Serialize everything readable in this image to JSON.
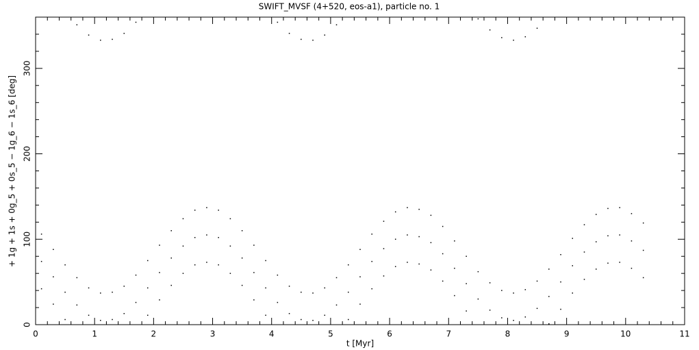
{
  "chart_data": {
    "type": "scatter",
    "title": "SWIFT_MVSF (4+520, eos-a1), particle no. 1",
    "x_label": "t [Myr]",
    "y_label": "+ 1g + 1s + 0g_5 + 0s_5 − 1g_6 − 1s_6 [deg]",
    "xlim": [
      0,
      11
    ],
    "ylim": [
      0,
      360
    ],
    "xticks": [
      0,
      1,
      2,
      3,
      4,
      5,
      6,
      7,
      8,
      9,
      10,
      11
    ],
    "yticks": [
      0,
      100,
      200,
      300
    ],
    "color": "#000000",
    "x": [
      0.1,
      0.1,
      0.1,
      0.3,
      0.3,
      0.3,
      0.5,
      0.5,
      0.5,
      0.7,
      0.7,
      0.7,
      0.9,
      0.9,
      0.9,
      1.1,
      1.1,
      1.1,
      1.3,
      1.3,
      1.3,
      1.5,
      1.5,
      1.5,
      1.7,
      1.7,
      1.7,
      1.9,
      1.9,
      1.9,
      2.1,
      2.1,
      2.1,
      2.3,
      2.3,
      2.3,
      2.5,
      2.5,
      2.5,
      2.7,
      2.7,
      2.7,
      2.9,
      2.9,
      2.9,
      3.1,
      3.1,
      3.1,
      3.3,
      3.3,
      3.3,
      3.5,
      3.5,
      3.5,
      3.7,
      3.7,
      3.7,
      3.9,
      3.9,
      3.9,
      4.1,
      4.1,
      4.1,
      4.3,
      4.3,
      4.3,
      4.5,
      4.5,
      4.5,
      4.7,
      4.7,
      4.7,
      4.9,
      4.9,
      4.9,
      5.1,
      5.1,
      5.1,
      5.3,
      5.3,
      5.3,
      5.5,
      5.5,
      5.5,
      5.7,
      5.7,
      5.7,
      5.9,
      5.9,
      5.9,
      6.1,
      6.1,
      6.1,
      6.3,
      6.3,
      6.3,
      6.5,
      6.5,
      6.5,
      6.7,
      6.7,
      6.7,
      6.9,
      6.9,
      6.9,
      7.1,
      7.1,
      7.1,
      7.3,
      7.3,
      7.3,
      7.5,
      7.5,
      7.5,
      7.7,
      7.7,
      7.7,
      7.9,
      7.9,
      7.9,
      8.1,
      8.1,
      8.1,
      8.3,
      8.3,
      8.3,
      8.5,
      8.5,
      8.5,
      8.7,
      8.7,
      8.7,
      8.9,
      8.9,
      8.9,
      9.1,
      9.1,
      9.1,
      9.3,
      9.3,
      9.3,
      9.5,
      9.5,
      9.5,
      9.7,
      9.7,
      9.7,
      9.9,
      9.9,
      9.9,
      10.1,
      10.1,
      10.1,
      10.3,
      10.3,
      10.3
    ],
    "y": [
      106,
      74,
      42,
      88,
      56,
      24,
      70,
      38,
      6,
      55,
      23,
      351,
      43,
      11,
      339,
      37,
      5,
      333,
      38,
      6,
      334,
      45,
      13,
      341,
      58,
      26,
      354,
      75,
      43,
      11,
      93,
      61,
      29,
      110,
      78,
      46,
      124,
      92,
      60,
      134,
      102,
      70,
      137,
      105,
      73,
      134,
      102,
      70,
      124,
      92,
      60,
      110,
      78,
      46,
      93,
      61,
      29,
      75,
      43,
      11,
      58,
      26,
      354,
      45,
      13,
      341,
      38,
      6,
      334,
      37,
      5,
      333,
      43,
      11,
      339,
      55,
      23,
      351,
      70,
      38,
      6,
      88,
      56,
      24,
      106,
      74,
      42,
      121,
      89,
      57,
      132,
      100,
      68,
      137,
      105,
      73,
      135,
      103,
      71,
      128,
      96,
      64,
      115,
      83,
      51,
      98,
      66,
      34,
      80,
      48,
      16,
      62,
      30,
      358,
      49,
      17,
      345,
      40,
      8,
      336,
      37,
      5,
      333,
      41,
      9,
      337,
      51,
      19,
      347,
      65,
      33,
      1,
      82,
      50,
      18,
      101,
      69,
      37,
      117,
      85,
      53,
      129,
      97,
      65,
      136,
      104,
      72,
      137,
      105,
      73,
      130,
      98,
      66,
      119,
      87,
      55
    ]
  }
}
